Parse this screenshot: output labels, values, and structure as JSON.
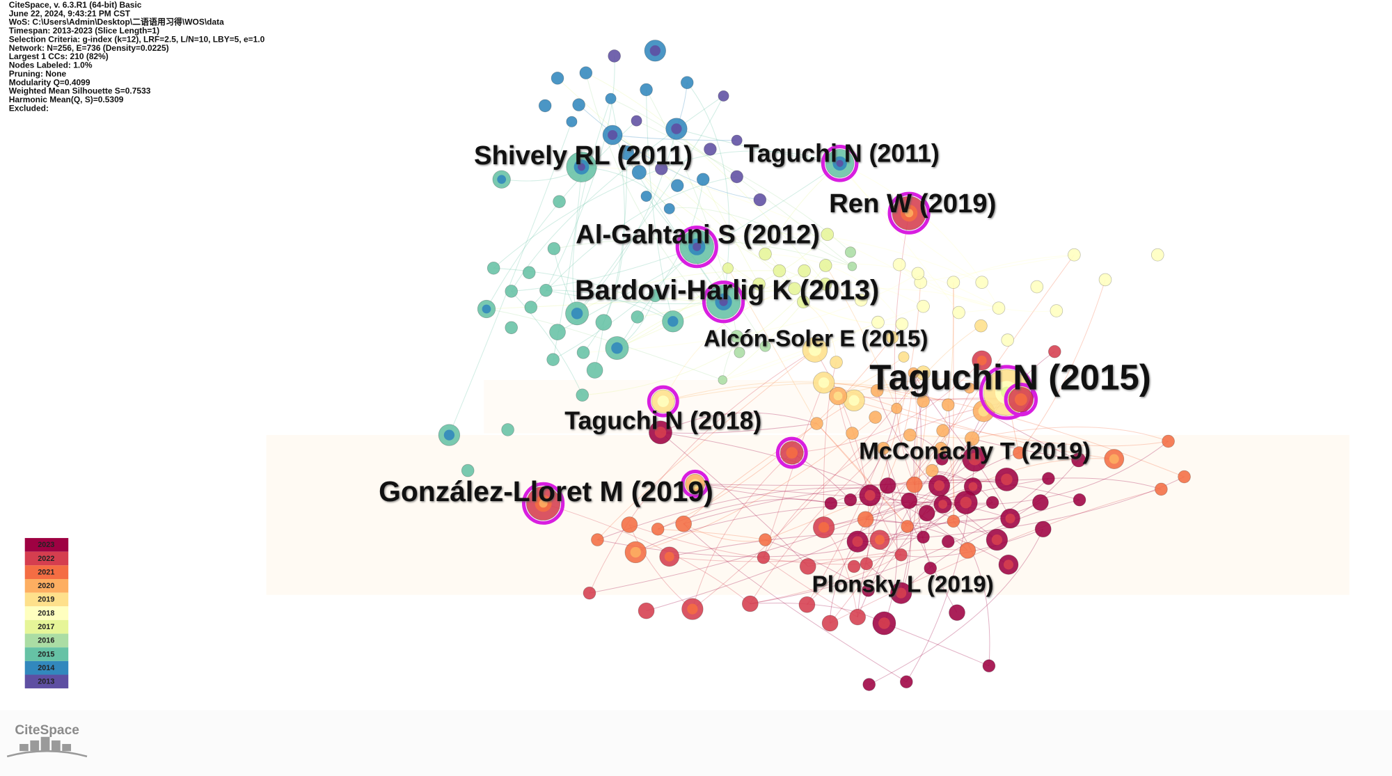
{
  "header": {
    "lines": [
      "CiteSpace, v. 6.3.R1 (64-bit) Basic",
      "June 22, 2024, 9:43:21 PM CST",
      "WoS: C:\\Users\\Admin\\Desktop\\二语语用习得\\WOS\\data",
      "Timespan: 2013-2023 (Slice Length=1)",
      "Selection Criteria: g-index (k=12), LRF=2.5, L/N=10, LBY=5, e=1.0",
      "Network: N=256, E=736 (Density=0.0225)",
      "Largest 1 CCs: 210 (82%)",
      "Nodes Labeled: 1.0%",
      "Pruning: None",
      "Modularity Q=0.4099",
      "Weighted Mean Silhouette S=0.7533",
      "Harmonic Mean(Q, S)=0.5309",
      "Excluded:"
    ]
  },
  "labels": [
    "Shively RL (2011)",
    "Taguchi N (2011)",
    "Ren W (2019)",
    "Al-Gahtani S (2012)",
    "Bardovi-Harlig K (2013)",
    "Alcón-Soler E (2015)",
    "Taguchi N (2015)",
    "Taguchi N (2018)",
    "McConachy T (2019)",
    "González-Lloret M (2019)",
    "Plonsky L (2019)"
  ],
  "legend": [
    {
      "year": "2023",
      "color": "#9e0142"
    },
    {
      "year": "2022",
      "color": "#d53e4f"
    },
    {
      "year": "2021",
      "color": "#f46d43"
    },
    {
      "year": "2020",
      "color": "#fdae61"
    },
    {
      "year": "2019",
      "color": "#fee08b"
    },
    {
      "year": "2018",
      "color": "#ffffbf"
    },
    {
      "year": "2017",
      "color": "#e6f598"
    },
    {
      "year": "2016",
      "color": "#abdda4"
    },
    {
      "year": "2015",
      "color": "#66c2a5"
    },
    {
      "year": "2014",
      "color": "#3288bd"
    },
    {
      "year": "2013",
      "color": "#5e4fa2"
    }
  ],
  "logo": "CiteSpace"
}
